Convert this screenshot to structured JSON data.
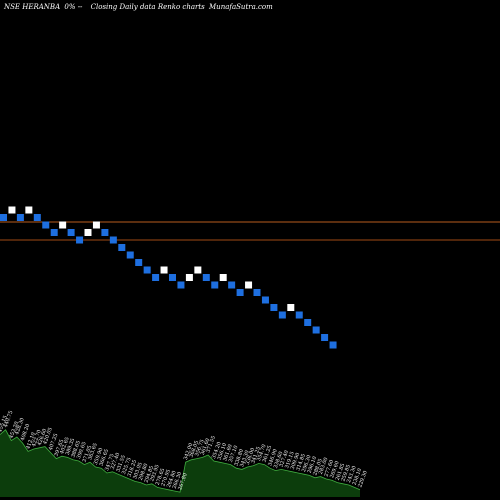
{
  "chart_data": {
    "type": "renko",
    "header": {
      "symbol": "NSE HERANBA",
      "change": "0% --",
      "description": "Closing Daily data  Renko  charts",
      "watermark": "MunafaSutra.com"
    },
    "price_levels": [
      500,
      493
    ],
    "colors": {
      "background": "#000000",
      "up_brick": "#ffffff",
      "down_brick": "#1e6fe0",
      "level_line_1": "#b85c1e",
      "level_line_2": "#a04a14",
      "volume_fill": "#0c3d0c",
      "volume_line": "#3fae3f",
      "text": "#ffffff"
    },
    "bricks": [
      {
        "dir": "down",
        "step": 0
      },
      {
        "dir": "up",
        "step": 1
      },
      {
        "dir": "down",
        "step": 0
      },
      {
        "dir": "up",
        "step": 1
      },
      {
        "dir": "down",
        "step": 0
      },
      {
        "dir": "down",
        "step": -1
      },
      {
        "dir": "down",
        "step": -2
      },
      {
        "dir": "up",
        "step": -1
      },
      {
        "dir": "down",
        "step": -2
      },
      {
        "dir": "down",
        "step": -3
      },
      {
        "dir": "up",
        "step": -2
      },
      {
        "dir": "up",
        "step": -1
      },
      {
        "dir": "down",
        "step": -2
      },
      {
        "dir": "down",
        "step": -3
      },
      {
        "dir": "down",
        "step": -4
      },
      {
        "dir": "down",
        "step": -5
      },
      {
        "dir": "down",
        "step": -6
      },
      {
        "dir": "down",
        "step": -7
      },
      {
        "dir": "down",
        "step": -8
      },
      {
        "dir": "up",
        "step": -7
      },
      {
        "dir": "down",
        "step": -8
      },
      {
        "dir": "down",
        "step": -9
      },
      {
        "dir": "up",
        "step": -8
      },
      {
        "dir": "up",
        "step": -7
      },
      {
        "dir": "down",
        "step": -8
      },
      {
        "dir": "down",
        "step": -9
      },
      {
        "dir": "up",
        "step": -8
      },
      {
        "dir": "down",
        "step": -9
      },
      {
        "dir": "down",
        "step": -10
      },
      {
        "dir": "up",
        "step": -9
      },
      {
        "dir": "down",
        "step": -10
      },
      {
        "dir": "down",
        "step": -11
      },
      {
        "dir": "down",
        "step": -12
      },
      {
        "dir": "down",
        "step": -13
      },
      {
        "dir": "up",
        "step": -12
      },
      {
        "dir": "down",
        "step": -13
      },
      {
        "dir": "down",
        "step": -14
      },
      {
        "dir": "down",
        "step": -15
      },
      {
        "dir": "down",
        "step": -16
      },
      {
        "dir": "down",
        "step": -17
      }
    ],
    "volume": {
      "labels": [
        "455.15",
        "440.75",
        "453.20",
        "428.30",
        "408.20",
        "412.10",
        "422.70",
        "426.60",
        "420.05",
        "407.25",
        "397.65",
        "402.65",
        "389.35",
        "388.65",
        "390.65",
        "371.05",
        "363.65",
        "359.90",
        "366.65",
        "347.75",
        "327.40",
        "331.55",
        "325.75",
        "318.25",
        "303.05",
        "298.80",
        "294.85",
        "293.95",
        "278.65",
        "270.95",
        "264.80",
        "266.30",
        "267.80",
        "342.00",
        "368.05",
        "356.75",
        "361.60",
        "371.55",
        "354.20",
        "356.10",
        "361.60",
        "357.10",
        "338.80",
        "343.30",
        "336.00",
        "341.25",
        "354.70",
        "361.25",
        "346.90",
        "338.60",
        "327.40",
        "319.15",
        "309.90",
        "314.85",
        "296.30",
        "296.10",
        "288.05",
        "283.00",
        "277.60",
        "269.60",
        "261.85",
        "259.85",
        "243.30",
        "238.10",
        "229.30"
      ],
      "levels": [
        0.52,
        0.56,
        0.47,
        0.5,
        0.45,
        0.38,
        0.4,
        0.41,
        0.42,
        0.37,
        0.32,
        0.34,
        0.33,
        0.31,
        0.3,
        0.27,
        0.29,
        0.25,
        0.24,
        0.2,
        0.21,
        0.19,
        0.17,
        0.15,
        0.13,
        0.12,
        0.1,
        0.11,
        0.08,
        0.07,
        0.06,
        0.05,
        0.04,
        0.29,
        0.31,
        0.32,
        0.33,
        0.35,
        0.3,
        0.29,
        0.28,
        0.27,
        0.24,
        0.23,
        0.25,
        0.26,
        0.28,
        0.27,
        0.24,
        0.22,
        0.23,
        0.22,
        0.21,
        0.2,
        0.19,
        0.18,
        0.16,
        0.17,
        0.15,
        0.14,
        0.12,
        0.11,
        0.1,
        0.08,
        0.06
      ]
    }
  }
}
